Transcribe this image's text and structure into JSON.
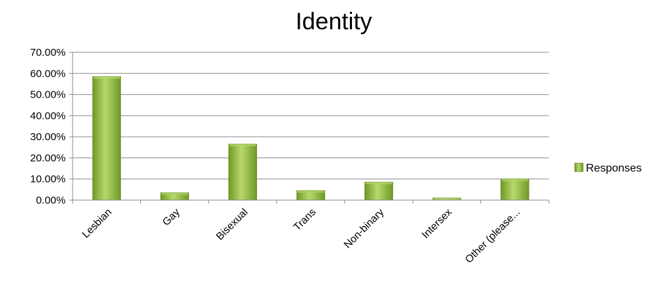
{
  "chart_data": {
    "type": "bar",
    "title": "Identity",
    "categories": [
      "Lesbian",
      "Gay",
      "Bisexual",
      "Trans",
      "Non-binary",
      "Intersex",
      "Other (please..."
    ],
    "series": [
      {
        "name": "Responses",
        "values": [
          0.585,
          0.035,
          0.265,
          0.045,
          0.085,
          0.01,
          0.1
        ]
      }
    ],
    "ylim": [
      0,
      0.7
    ],
    "yticks": [
      "0.00%",
      "10.00%",
      "20.00%",
      "30.00%",
      "40.00%",
      "50.00%",
      "60.00%",
      "70.00%"
    ],
    "grid": true,
    "legend_position": "right",
    "colors": {
      "bar_light": "#b5d56a",
      "bar_mid": "#8fb73e",
      "bar_dark": "#5f8a1e",
      "grid": "#8c8c8c"
    }
  }
}
